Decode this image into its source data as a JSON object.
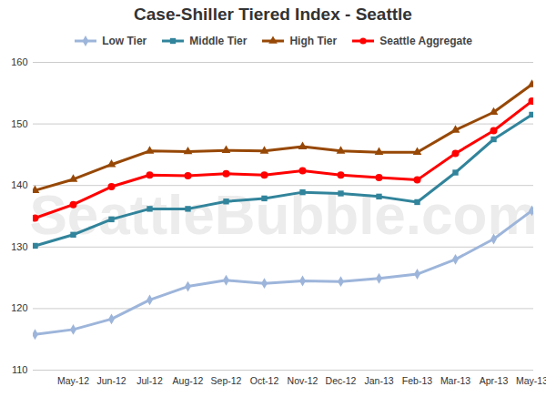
{
  "chart_data": {
    "type": "line",
    "title": "Case-Shiller Tiered Index - Seattle",
    "watermark": "SeattleBubble.com",
    "categories": [
      null,
      "May-12",
      "Jun-12",
      "Jul-12",
      "Aug-12",
      "Sep-12",
      "Oct-12",
      "Nov-12",
      "Dec-12",
      "Jan-13",
      "Feb-13",
      "Mar-13",
      "Apr-13",
      "May-13"
    ],
    "series": [
      {
        "name": "Low Tier",
        "color": "#9db5da",
        "marker": "diamond",
        "values": [
          115.8,
          116.6,
          118.3,
          121.4,
          123.6,
          124.6,
          124.1,
          124.5,
          124.4,
          124.9,
          125.6,
          128.0,
          131.3,
          135.9
        ]
      },
      {
        "name": "Middle Tier",
        "color": "#31849b",
        "marker": "square",
        "values": [
          130.2,
          132.0,
          134.5,
          136.2,
          136.2,
          137.4,
          137.9,
          138.9,
          138.7,
          138.2,
          137.3,
          142.1,
          147.5,
          151.5
        ]
      },
      {
        "name": "High Tier",
        "color": "#974806",
        "marker": "triangle",
        "values": [
          139.2,
          141.0,
          143.4,
          145.6,
          145.5,
          145.7,
          145.6,
          146.3,
          145.6,
          145.4,
          145.4,
          149.0,
          151.9,
          156.4
        ]
      },
      {
        "name": "Seattle Aggregate",
        "color": "#ff0000",
        "marker": "circle",
        "values": [
          134.7,
          136.9,
          139.8,
          141.7,
          141.6,
          141.9,
          141.7,
          142.4,
          141.7,
          141.3,
          140.9,
          145.2,
          148.9,
          153.7
        ]
      }
    ],
    "ylim": [
      110,
      160
    ],
    "yticks": [
      110,
      120,
      130,
      140,
      150,
      160
    ],
    "grid": true,
    "legend": "top"
  }
}
